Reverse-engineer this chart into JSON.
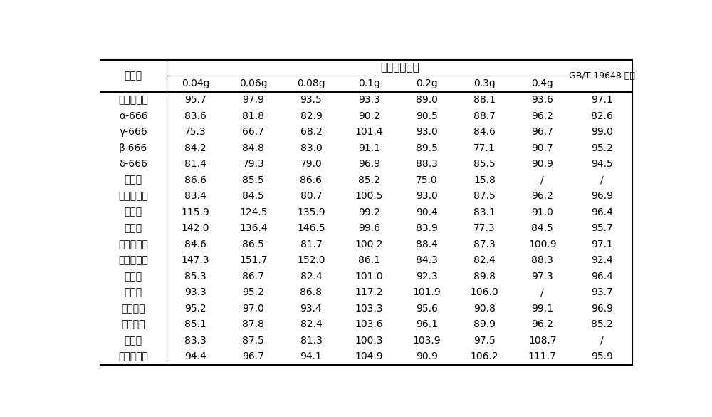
{
  "title_main": "石墨化碳用量",
  "col_header_1": "化合物",
  "col_header_last": "GB/T 19648 方法",
  "sub_headers": [
    "0.04g",
    "0.06g",
    "0.08g",
    "0.1g",
    "0.2g",
    "0.3g",
    "0.4g"
  ],
  "rows": [
    [
      "五氯硒基苯",
      "95.7",
      "97.9",
      "93.5",
      "93.3",
      "89.0",
      "88.1",
      "93.6",
      "97.1"
    ],
    [
      "α-666",
      "83.6",
      "81.8",
      "82.9",
      "90.2",
      "90.5",
      "88.7",
      "96.2",
      "82.6"
    ],
    [
      "γ-666",
      "75.3",
      "66.7",
      "68.2",
      "101.4",
      "93.0",
      "84.6",
      "96.7",
      "99.0"
    ],
    [
      "β-666",
      "84.2",
      "84.8",
      "83.0",
      "91.1",
      "89.5",
      "77.1",
      "90.7",
      "95.2"
    ],
    [
      "δ-666",
      "81.4",
      "79.3",
      "79.0",
      "96.9",
      "88.3",
      "85.5",
      "90.9",
      "94.5"
    ],
    [
      "百菌清",
      "86.6",
      "85.5",
      "86.6",
      "85.2",
      "75.0",
      "15.8",
      "/",
      "/"
    ],
    [
      "乙烯菌核利",
      "83.4",
      "84.5",
      "80.7",
      "100.5",
      "93.0",
      "87.5",
      "96.2",
      "96.9"
    ],
    [
      "三喔锐",
      "115.9",
      "124.5",
      "135.9",
      "99.2",
      "90.4",
      "83.1",
      "91.0",
      "96.4"
    ],
    [
      "氯虫腼",
      "142.0",
      "136.4",
      "146.5",
      "99.6",
      "83.9",
      "77.3",
      "84.5",
      "95.7"
    ],
    [
      "三氯杀螨醇",
      "84.6",
      "86.5",
      "81.7",
      "100.2",
      "88.4",
      "87.3",
      "100.9",
      "97.1"
    ],
    [
      "二甲戊乐灵",
      "147.3",
      "151.7",
      "152.0",
      "86.1",
      "84.3",
      "82.4",
      "88.3",
      "92.4"
    ],
    [
      "腐霊利",
      "85.3",
      "86.7",
      "82.4",
      "101.0",
      "92.3",
      "89.8",
      "97.3",
      "96.4"
    ],
    [
      "虫螨腼",
      "93.3",
      "95.2",
      "86.8",
      "117.2",
      "101.9",
      "106.0",
      "/",
      "93.7"
    ],
    [
      "联苯菊酯",
      "95.2",
      "97.0",
      "93.4",
      "103.3",
      "95.6",
      "90.8",
      "99.1",
      "96.9"
    ],
    [
      "甲氯菊酯",
      "85.1",
      "87.8",
      "82.4",
      "103.6",
      "96.1",
      "89.9",
      "96.2",
      "85.2"
    ],
    [
      "异菌脲",
      "83.3",
      "87.5",
      "81.3",
      "100.3",
      "103.9",
      "97.5",
      "108.7",
      "/"
    ],
    [
      "氯氯氯菊酯",
      "94.4",
      "96.7",
      "94.1",
      "104.9",
      "90.9",
      "106.2",
      "111.7",
      "95.9"
    ]
  ],
  "background_color": "#ffffff",
  "text_color": "#000000",
  "font_size_title": 11,
  "font_size_header": 10,
  "font_size_data": 10,
  "line_color": "#000000"
}
